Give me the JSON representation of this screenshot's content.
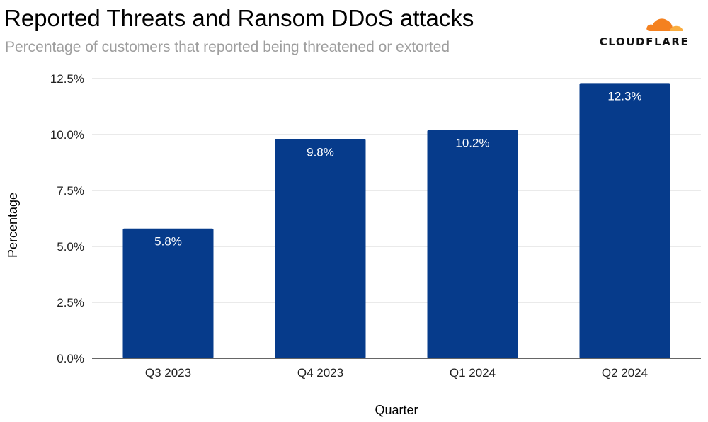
{
  "title": "Reported Threats and Ransom DDoS attacks",
  "subtitle": "Percentage of customers that reported being threatened or extorted",
  "logo": {
    "text": "CLOUDFLARE",
    "icon": "cloud-icon",
    "colors": {
      "primary": "#f48120",
      "secondary": "#faad3f"
    }
  },
  "chart_data": {
    "type": "bar",
    "categories": [
      "Q3 2023",
      "Q4 2023",
      "Q1 2024",
      "Q2 2024"
    ],
    "values": [
      5.8,
      9.8,
      10.2,
      12.3
    ],
    "data_labels": [
      "5.8%",
      "9.8%",
      "10.2%",
      "12.3%"
    ],
    "xlabel": "Quarter",
    "ylabel": "Percentage",
    "ylim": [
      0,
      12.5
    ],
    "yticks": [
      0,
      2.5,
      5.0,
      7.5,
      10.0,
      12.5
    ],
    "ytick_labels": [
      "0.0%",
      "2.5%",
      "5.0%",
      "7.5%",
      "10.0%",
      "12.5%"
    ],
    "grid": true,
    "legend": "none",
    "bar_color": "#063b8b",
    "label_color": "#ffffff"
  }
}
